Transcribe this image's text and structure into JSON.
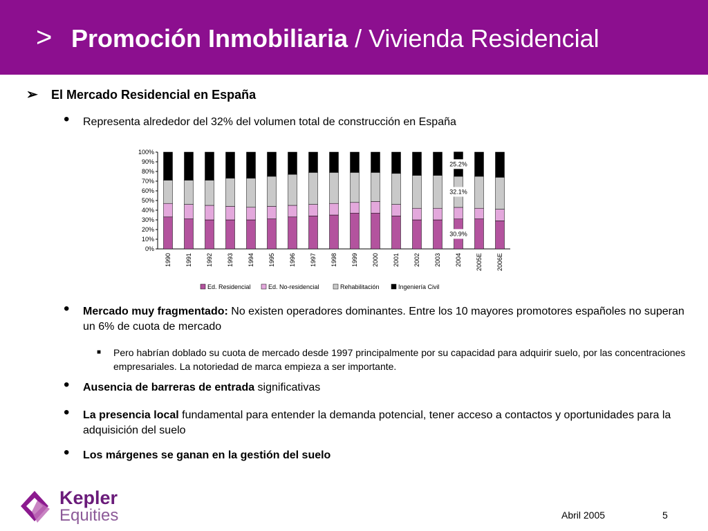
{
  "header": {
    "arrow": ">",
    "title_bold": "Promoción Inmobiliaria",
    "title_rest": " / Vivienda Residencial",
    "background": "#8c0f8f"
  },
  "section_title": "El Mercado Residencial en España",
  "bullet1": "Representa alrededor del 32% del volumen total de construcción en España",
  "bullet2": {
    "bold": "Mercado muy fragmentado:",
    "rest": " No existen operadores dominantes. Entre los 10 mayores promotores españoles no superan un 6% de cuota de mercado"
  },
  "sub1": "Pero habrían doblado su cuota de mercado desde 1997 principalmente por su capacidad para adquirir suelo, por las concentraciones empresariales. La notoriedad de marca empieza a ser importante.",
  "bullet3": {
    "bold": "Ausencia de barreras de entrada",
    "rest": " significativas"
  },
  "bullet4": {
    "bold": "La presencia local",
    "rest": " fundamental para entender la demanda potencial, tener acceso a contactos y oportunidades para la adquisición del suelo"
  },
  "bullet5": {
    "bold": "Los márgenes se ganan en la gestión del suelo",
    "rest": ""
  },
  "footer": {
    "date": "Abril 2005",
    "page": "5"
  },
  "logo": {
    "line1": "Kepler",
    "line2": "Equities"
  },
  "chart_data": {
    "type": "bar",
    "stacked": true,
    "categories": [
      "1990",
      "1991",
      "1992",
      "1993",
      "1994",
      "1995",
      "1996",
      "1997",
      "1998",
      "1999",
      "2000",
      "2001",
      "2002",
      "2003",
      "2004",
      "2005E",
      "2006E"
    ],
    "series": [
      {
        "name": "Ed. Residencial",
        "color": "#b3539e",
        "values": [
          33,
          31,
          30,
          30,
          30,
          31,
          33,
          34,
          35,
          37,
          37,
          34,
          30,
          30,
          30.9,
          31,
          29
        ]
      },
      {
        "name": "Ed. No-residencial",
        "color": "#e3a8dc",
        "values": [
          14,
          15,
          15,
          14,
          13,
          13,
          12,
          12,
          12,
          11,
          12,
          12,
          12,
          12,
          12,
          11,
          12
        ]
      },
      {
        "name": "Rehabilitación",
        "color": "#c9c9c9",
        "values": [
          24,
          25,
          26,
          29,
          30,
          31,
          32,
          33,
          32,
          31,
          30,
          32,
          34,
          34,
          32.1,
          33,
          33
        ]
      },
      {
        "name": "Ingeniería Civil",
        "color": "#000000",
        "values": [
          29,
          29,
          29,
          27,
          27,
          25,
          23,
          21,
          21,
          21,
          21,
          22,
          24,
          24,
          25.2,
          25,
          26
        ]
      }
    ],
    "annotations": [
      {
        "category": "2004",
        "series": "Ingeniería Civil",
        "label": "25.2%"
      },
      {
        "category": "2004",
        "series": "Rehabilitación",
        "label": "32.1%"
      },
      {
        "category": "2004",
        "series": "Ed. Residencial",
        "label": "30.9%"
      }
    ],
    "y_ticks": [
      "0%",
      "10%",
      "20%",
      "30%",
      "40%",
      "50%",
      "60%",
      "70%",
      "80%",
      "90%",
      "100%"
    ],
    "ylim": [
      0,
      100
    ],
    "legend_position": "bottom",
    "grid": false
  }
}
